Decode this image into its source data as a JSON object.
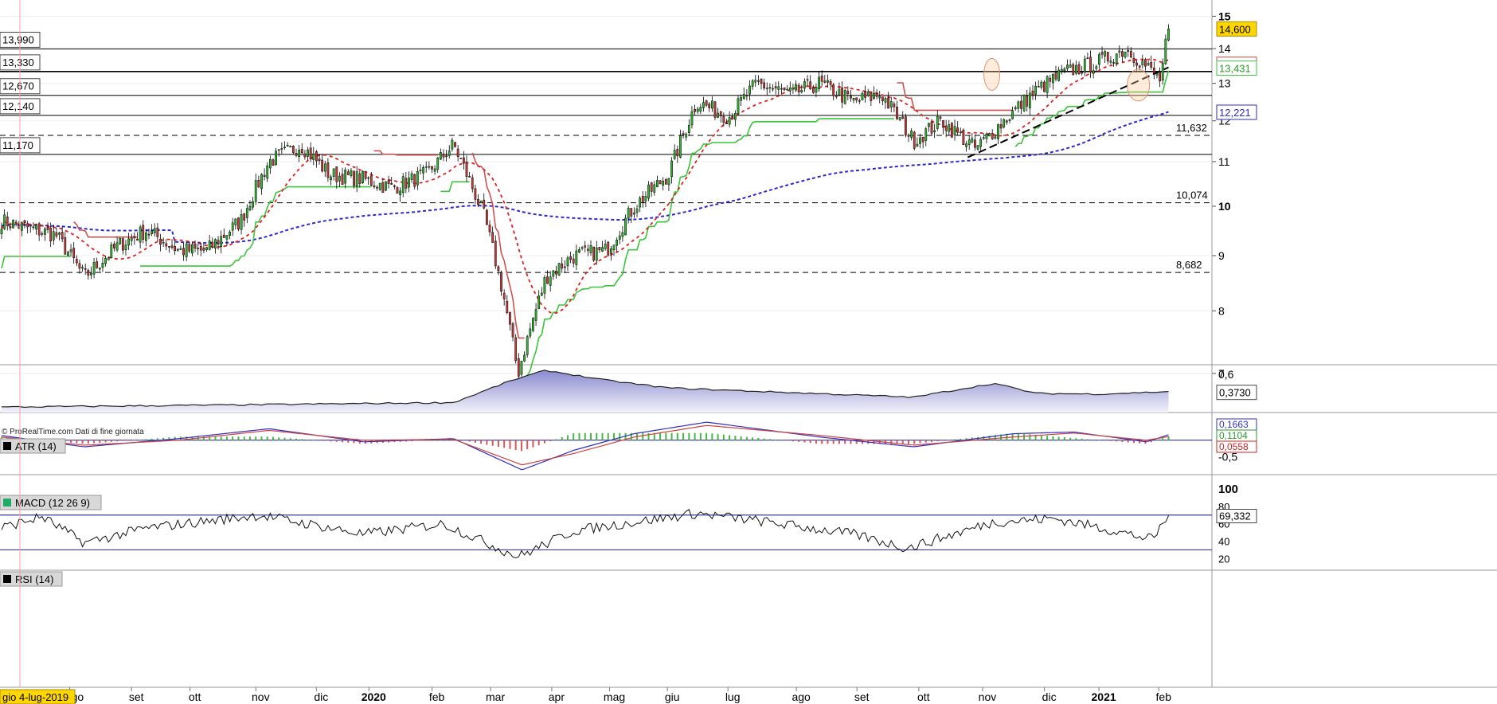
{
  "source_note": "© ProRealTime.com  Dati di fine giornata",
  "date_badge": "gio 4-lug-2019",
  "colors": {
    "up": "#2fb52f",
    "down": "#c73a3a",
    "sma_red": "#e02020",
    "sma_blue": "#2a2ad0",
    "supertrend_red": "#d05050",
    "supertrend_green": "#3cc43c",
    "badge_yellow": "#ffd700",
    "atr_fill": "#9a9ad2",
    "rsi_band": "#3a3aa0"
  },
  "main": {
    "price_axis_ticks": [
      "15",
      "14",
      "13",
      "12",
      "11",
      "10",
      "9",
      "8",
      "7"
    ],
    "levels_left": [
      {
        "label": "13,990",
        "value": 13.99
      },
      {
        "label": "13,330",
        "value": 13.33
      },
      {
        "label": "12,670",
        "value": 12.67
      },
      {
        "label": "12,140",
        "value": 12.14
      },
      {
        "label": "11,170",
        "value": 11.17
      }
    ],
    "levels_right_dashed": [
      {
        "label": "11,632",
        "value": 11.632
      },
      {
        "label": "10,074",
        "value": 10.074
      },
      {
        "label": "8,682",
        "value": 8.682
      }
    ],
    "last_price_badges": [
      {
        "label": "14,600",
        "value": 14.6
      },
      {
        "label": "13,538",
        "value": 13.538
      },
      {
        "label": "13,431",
        "value": 13.431
      },
      {
        "label": "12,221",
        "value": 12.221
      }
    ]
  },
  "x_axis_labels": [
    "ago",
    "set",
    "ott",
    "nov",
    "dic",
    "2020",
    "feb",
    "mar",
    "apr",
    "mag",
    "giu",
    "lug",
    "ago",
    "set",
    "ott",
    "nov",
    "dic",
    "2021",
    "feb"
  ],
  "atr": {
    "title": "ATR (14)",
    "ticks": [
      "0,6"
    ],
    "last": "0,3730"
  },
  "macd": {
    "title": "MACD (12 26 9)",
    "ticks": [
      "0,5",
      "-0,5"
    ],
    "values": [
      "0,1663",
      "0,1104",
      "0,0558"
    ]
  },
  "rsi": {
    "title": "RSI (14)",
    "ticks": [
      "100",
      "80",
      "60",
      "40",
      "20"
    ],
    "last": "69,332"
  },
  "chart_data": [
    {
      "type": "line",
      "title": "",
      "subtitle": "",
      "xlabel": "",
      "ylabel": "",
      "y_scale": "log",
      "ylim": [
        6.2,
        15.1
      ],
      "x": [
        "2019-07-04",
        "2019-08-01",
        "2019-08-15",
        "2019-09-01",
        "2019-09-15",
        "2019-10-01",
        "2019-10-15",
        "2019-11-01",
        "2019-11-15",
        "2019-12-01",
        "2019-12-15",
        "2020-01-01",
        "2020-01-15",
        "2020-02-01",
        "2020-02-15",
        "2020-03-01",
        "2020-03-10",
        "2020-03-18",
        "2020-04-01",
        "2020-04-15",
        "2020-05-01",
        "2020-05-15",
        "2020-06-01",
        "2020-06-15",
        "2020-07-01",
        "2020-07-15",
        "2020-08-01",
        "2020-08-15",
        "2020-09-01",
        "2020-09-15",
        "2020-10-01",
        "2020-10-15",
        "2020-11-01",
        "2020-11-15",
        "2020-12-01",
        "2020-12-15",
        "2021-01-01",
        "2021-01-15",
        "2021-02-01",
        "2021-02-05"
      ],
      "series": [
        {
          "values": [
            9.7,
            9.4,
            8.6,
            9.2,
            9.5,
            9.1,
            9.1,
            9.7,
            11.0,
            11.4,
            10.7,
            10.6,
            10.4,
            10.7,
            11.4,
            9.8,
            8.4,
            7.0,
            8.6,
            9.0,
            9.1,
            10.0,
            10.7,
            12.5,
            12.1,
            13.0,
            12.7,
            13.0,
            12.5,
            12.7,
            11.5,
            12.0,
            11.3,
            12.0,
            12.8,
            13.3,
            13.6,
            14.0,
            13.1,
            14.6
          ]
        }
      ],
      "grid": true,
      "legend": "none"
    },
    {
      "type": "area",
      "title": "ATR (14)",
      "ylim": [
        0.1,
        0.65
      ],
      "x": [
        "2019-07-04",
        "2019-11-01",
        "2020-02-15",
        "2020-03-15",
        "2020-04-01",
        "2020-05-01",
        "2020-06-01",
        "2020-08-01",
        "2020-10-01",
        "2020-11-10",
        "2020-12-01",
        "2021-01-01",
        "2021-02-05"
      ],
      "series": [
        {
          "values": [
            0.17,
            0.2,
            0.23,
            0.52,
            0.65,
            0.52,
            0.42,
            0.36,
            0.3,
            0.48,
            0.35,
            0.34,
            0.373
          ]
        }
      ]
    },
    {
      "type": "line",
      "title": "MACD (12 26 9)",
      "ylim": [
        -0.9,
        0.6
      ],
      "x": [
        "2019-07-04",
        "2019-08-15",
        "2019-10-01",
        "2019-11-15",
        "2020-01-01",
        "2020-02-15",
        "2020-03-20",
        "2020-04-15",
        "2020-05-15",
        "2020-06-20",
        "2020-08-15",
        "2020-10-01",
        "2020-11-20",
        "2020-12-20",
        "2021-01-25",
        "2021-02-05"
      ],
      "series": [
        {
          "values": [
            0.15,
            -0.2,
            0.05,
            0.35,
            -0.05,
            0.05,
            -0.9,
            -0.3,
            0.2,
            0.55,
            0.1,
            -0.2,
            0.2,
            0.25,
            -0.05,
            0.166
          ]
        },
        {
          "values": [
            0.1,
            -0.15,
            0.0,
            0.3,
            0.0,
            0.03,
            -0.75,
            -0.4,
            0.1,
            0.45,
            0.15,
            -0.15,
            0.1,
            0.22,
            0.0,
            0.11
          ]
        }
      ]
    },
    {
      "type": "line",
      "title": "RSI (14)",
      "ylim": [
        0,
        100
      ],
      "x": [
        "2019-07-04",
        "2019-07-25",
        "2019-08-15",
        "2019-09-15",
        "2019-11-10",
        "2020-01-01",
        "2020-02-10",
        "2020-03-18",
        "2020-04-15",
        "2020-06-15",
        "2020-07-20",
        "2020-09-01",
        "2020-09-28",
        "2020-11-10",
        "2020-12-10",
        "2021-01-01",
        "2021-01-28",
        "2021-02-05"
      ],
      "series": [
        {
          "values": [
            55,
            68,
            38,
            55,
            70,
            48,
            60,
            22,
            52,
            72,
            62,
            48,
            32,
            62,
            66,
            56,
            42,
            69.332
          ]
        }
      ],
      "reference_lines": [
        70,
        30
      ]
    }
  ]
}
